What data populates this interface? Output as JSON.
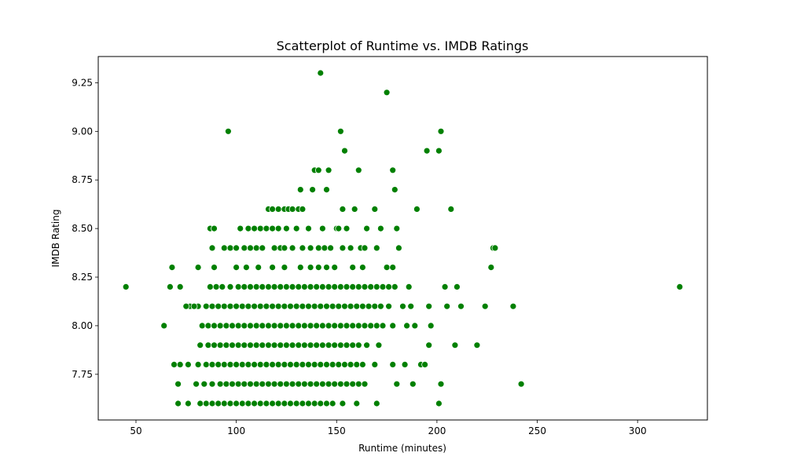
{
  "chart_data": {
    "type": "scatter",
    "title": "Scatterplot of Runtime vs. IMDB Ratings",
    "xlabel": "Runtime (minutes)",
    "ylabel": "IMDB Rating",
    "xlim": [
      31.2,
      334.8
    ],
    "ylim": [
      7.515,
      9.385
    ],
    "xticks": [
      50,
      100,
      150,
      200,
      250,
      300
    ],
    "yticks": [
      7.75,
      8.0,
      8.25,
      8.5,
      8.75,
      9.0,
      9.25
    ],
    "ytick_labels": [
      "7.75",
      "8.00",
      "8.25",
      "8.50",
      "8.75",
      "9.00",
      "9.25"
    ],
    "grid": false,
    "marker_color": "#008000",
    "marker_edge_color": "#ffffff",
    "series": [
      {
        "x": [
          142,
          175,
          96,
          152,
          202,
          154,
          195,
          201,
          139,
          141,
          146,
          161,
          178,
          132,
          138,
          145,
          179,
          116,
          118,
          121,
          124,
          126,
          128,
          131,
          133,
          153,
          159,
          169,
          190,
          207,
          87,
          89,
          102,
          106,
          109,
          112,
          115,
          118,
          121,
          125,
          130,
          136,
          143,
          150,
          151,
          155,
          165,
          172,
          180,
          228,
          229,
          88,
          94,
          97,
          100,
          104,
          107,
          110,
          113,
          119,
          122,
          124,
          128,
          133,
          137,
          141,
          144,
          147,
          153,
          157,
          162,
          164,
          170,
          181,
          68,
          81,
          89,
          100,
          105,
          111,
          118,
          124,
          132,
          137,
          141,
          145,
          149,
          158,
          163,
          175,
          178,
          227,
          45,
          87,
          90,
          93,
          97,
          101,
          104,
          107,
          110,
          113,
          116,
          119,
          122,
          125,
          128,
          131,
          134,
          137,
          140,
          143,
          146,
          149,
          152,
          155,
          158,
          161,
          164,
          167,
          170,
          173,
          176,
          179,
          186,
          204,
          210,
          321,
          67,
          72,
          77,
          81,
          85,
          88,
          91,
          94,
          97,
          100,
          103,
          106,
          109,
          112,
          115,
          118,
          121,
          124,
          127,
          130,
          133,
          136,
          139,
          142,
          145,
          148,
          151,
          154,
          157,
          160,
          163,
          166,
          169,
          172,
          176,
          183,
          187,
          196,
          205,
          212,
          224,
          238,
          75,
          79,
          83,
          86,
          89,
          92,
          95,
          98,
          101,
          104,
          107,
          110,
          113,
          116,
          119,
          122,
          125,
          128,
          131,
          134,
          137,
          140,
          143,
          146,
          149,
          152,
          155,
          158,
          161,
          164,
          167,
          170,
          173,
          178,
          185,
          189,
          197,
          64,
          82,
          86,
          89,
          92,
          95,
          98,
          101,
          104,
          107,
          110,
          113,
          116,
          119,
          122,
          125,
          128,
          131,
          134,
          137,
          140,
          143,
          146,
          149,
          152,
          155,
          158,
          161,
          165,
          171,
          196,
          209,
          220,
          69,
          72,
          76,
          81,
          85,
          88,
          91,
          94,
          97,
          100,
          103,
          106,
          109,
          112,
          115,
          118,
          121,
          124,
          127,
          130,
          133,
          136,
          139,
          142,
          145,
          148,
          151,
          154,
          157,
          160,
          163,
          169,
          178,
          184,
          192,
          194,
          71,
          80,
          84,
          88,
          92,
          95,
          98,
          101,
          104,
          107,
          110,
          113,
          116,
          119,
          122,
          125,
          128,
          131,
          134,
          137,
          140,
          143,
          146,
          149,
          152,
          155,
          158,
          161,
          164,
          180,
          188,
          202,
          242,
          71,
          76,
          82,
          85,
          88,
          91,
          94,
          97,
          100,
          103,
          106,
          109,
          112,
          115,
          118,
          121,
          124,
          127,
          130,
          133,
          136,
          139,
          142,
          145,
          148,
          153,
          160,
          170,
          201
        ],
        "y": [
          9.3,
          9.2,
          9.0,
          9.0,
          9.0,
          8.9,
          8.9,
          8.9,
          8.8,
          8.8,
          8.8,
          8.8,
          8.8,
          8.7,
          8.7,
          8.7,
          8.7,
          8.6,
          8.6,
          8.6,
          8.6,
          8.6,
          8.6,
          8.6,
          8.6,
          8.6,
          8.6,
          8.6,
          8.6,
          8.6,
          8.5,
          8.5,
          8.5,
          8.5,
          8.5,
          8.5,
          8.5,
          8.5,
          8.5,
          8.5,
          8.5,
          8.5,
          8.5,
          8.5,
          8.5,
          8.5,
          8.5,
          8.5,
          8.5,
          8.4,
          8.4,
          8.4,
          8.4,
          8.4,
          8.4,
          8.4,
          8.4,
          8.4,
          8.4,
          8.4,
          8.4,
          8.4,
          8.4,
          8.4,
          8.4,
          8.4,
          8.4,
          8.4,
          8.4,
          8.4,
          8.4,
          8.4,
          8.4,
          8.4,
          8.3,
          8.3,
          8.3,
          8.3,
          8.3,
          8.3,
          8.3,
          8.3,
          8.3,
          8.3,
          8.3,
          8.3,
          8.3,
          8.3,
          8.3,
          8.3,
          8.3,
          8.3,
          8.2,
          8.2,
          8.2,
          8.2,
          8.2,
          8.2,
          8.2,
          8.2,
          8.2,
          8.2,
          8.2,
          8.2,
          8.2,
          8.2,
          8.2,
          8.2,
          8.2,
          8.2,
          8.2,
          8.2,
          8.2,
          8.2,
          8.2,
          8.2,
          8.2,
          8.2,
          8.2,
          8.2,
          8.2,
          8.2,
          8.2,
          8.2,
          8.2,
          8.2,
          8.2,
          8.2,
          8.2,
          8.2,
          8.1,
          8.1,
          8.1,
          8.1,
          8.1,
          8.1,
          8.1,
          8.1,
          8.1,
          8.1,
          8.1,
          8.1,
          8.1,
          8.1,
          8.1,
          8.1,
          8.1,
          8.1,
          8.1,
          8.1,
          8.1,
          8.1,
          8.1,
          8.1,
          8.1,
          8.1,
          8.1,
          8.1,
          8.1,
          8.1,
          8.1,
          8.1,
          8.1,
          8.1,
          8.1,
          8.1,
          8.1,
          8.1,
          8.1,
          8.1,
          8.1,
          8.1,
          8.0,
          8.0,
          8.0,
          8.0,
          8.0,
          8.0,
          8.0,
          8.0,
          8.0,
          8.0,
          8.0,
          8.0,
          8.0,
          8.0,
          8.0,
          8.0,
          8.0,
          8.0,
          8.0,
          8.0,
          8.0,
          8.0,
          8.0,
          8.0,
          8.0,
          8.0,
          8.0,
          8.0,
          8.0,
          8.0,
          8.0,
          8.0,
          8.0,
          8.0,
          8.0,
          8.0,
          7.9,
          7.9,
          7.9,
          7.9,
          7.9,
          7.9,
          7.9,
          7.9,
          7.9,
          7.9,
          7.9,
          7.9,
          7.9,
          7.9,
          7.9,
          7.9,
          7.9,
          7.9,
          7.9,
          7.9,
          7.9,
          7.9,
          7.9,
          7.9,
          7.9,
          7.9,
          7.9,
          7.9,
          7.9,
          7.9,
          7.9,
          7.9,
          7.8,
          7.8,
          7.8,
          7.8,
          7.8,
          7.8,
          7.8,
          7.8,
          7.8,
          7.8,
          7.8,
          7.8,
          7.8,
          7.8,
          7.8,
          7.8,
          7.8,
          7.8,
          7.8,
          7.8,
          7.8,
          7.8,
          7.8,
          7.8,
          7.8,
          7.8,
          7.8,
          7.8,
          7.8,
          7.8,
          7.8,
          7.8,
          7.8,
          7.8,
          7.8,
          7.8,
          7.7,
          7.7,
          7.7,
          7.7,
          7.7,
          7.7,
          7.7,
          7.7,
          7.7,
          7.7,
          7.7,
          7.7,
          7.7,
          7.7,
          7.7,
          7.7,
          7.7,
          7.7,
          7.7,
          7.7,
          7.7,
          7.7,
          7.7,
          7.7,
          7.7,
          7.7,
          7.7,
          7.7,
          7.7,
          7.7,
          7.7,
          7.7,
          7.7,
          7.6,
          7.6,
          7.6,
          7.6,
          7.6,
          7.6,
          7.6,
          7.6,
          7.6,
          7.6,
          7.6,
          7.6,
          7.6,
          7.6,
          7.6,
          7.6,
          7.6,
          7.6,
          7.6,
          7.6,
          7.6,
          7.6,
          7.6,
          7.6,
          7.6,
          7.6,
          7.6,
          7.6,
          7.6
        ]
      }
    ]
  }
}
